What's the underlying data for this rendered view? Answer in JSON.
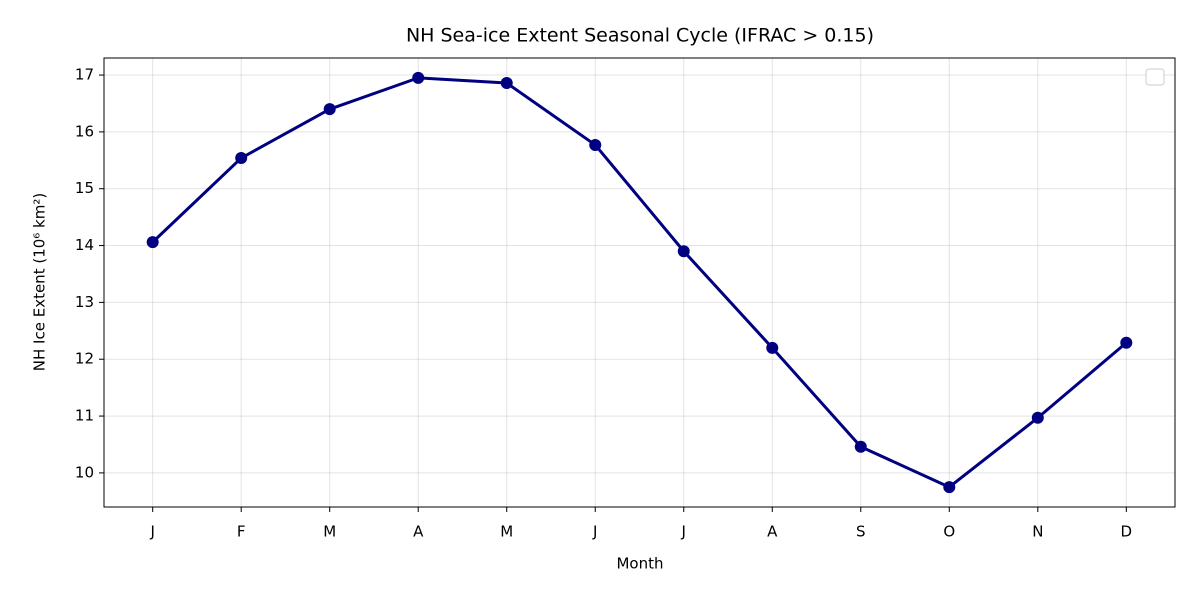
{
  "chart_data": {
    "type": "line",
    "title": "NH Sea-ice Extent Seasonal Cycle (IFRAC > 0.15)",
    "x_label": "Month",
    "y_label": "NH Ice Extent (10⁶ km²)",
    "categories": [
      "J",
      "F",
      "M",
      "A",
      "M",
      "J",
      "J",
      "A",
      "S",
      "O",
      "N",
      "D"
    ],
    "series": [
      {
        "color": "#000080",
        "values": [
          14.06,
          15.54,
          16.4,
          16.95,
          16.86,
          15.77,
          13.9,
          12.2,
          10.46,
          9.75,
          10.97,
          12.29
        ]
      }
    ],
    "ylim": [
      9.4,
      17.3
    ],
    "yticks": [
      10,
      11,
      12,
      13,
      14,
      15,
      16,
      17
    ],
    "grid": true,
    "legend": "upper right"
  }
}
